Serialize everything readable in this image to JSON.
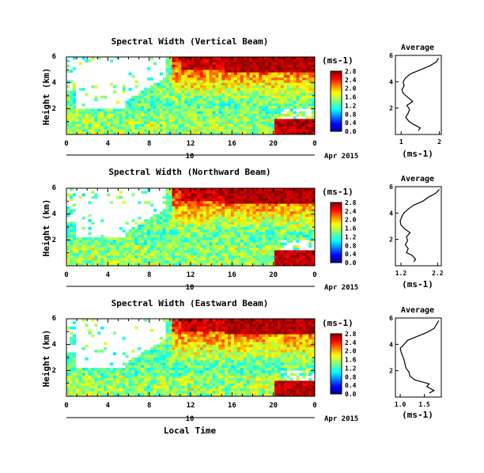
{
  "figure": {
    "xlabel": "Local Time",
    "date_label": "Apr 2015",
    "day_label": "10"
  },
  "chart_data": [
    {
      "type": "heatmap",
      "title": "Spectral Width (Vertical Beam)",
      "ylabel": "Height (km)",
      "xlim": [
        0,
        24
      ],
      "ylim": [
        0,
        6
      ],
      "x_ticks": [
        "0",
        "4",
        "8",
        "12",
        "16",
        "20",
        "0"
      ],
      "y_ticks": [
        "2",
        "4",
        "6"
      ],
      "colorbar": {
        "label": "(ms-1)",
        "ticks": [
          "0.0",
          "0.4",
          "0.8",
          "1.2",
          "1.6",
          "2.0",
          "2.4",
          "2.8"
        ],
        "range": [
          0,
          2.8
        ]
      },
      "average_profile": {
        "title": "Average",
        "xlabel": "(ms-1)",
        "ylabel": "",
        "x_ticks": [
          "1",
          "2"
        ],
        "xlim": [
          0.85,
          2.05
        ],
        "y_ticks": [
          "2",
          "4",
          "6"
        ],
        "ylim": [
          0,
          6
        ],
        "height": [
          0.3,
          0.5,
          0.8,
          1.0,
          1.3,
          1.6,
          1.9,
          2.2,
          2.5,
          2.8,
          3.1,
          3.4,
          3.7,
          4.0,
          4.3,
          4.6,
          4.9,
          5.2,
          5.5,
          5.8
        ],
        "value": [
          1.45,
          1.5,
          1.3,
          1.2,
          1.12,
          1.18,
          1.22,
          1.15,
          1.3,
          1.18,
          1.06,
          1.02,
          1.08,
          1.05,
          1.12,
          1.25,
          1.5,
          1.75,
          1.92,
          1.98
        ]
      }
    },
    {
      "type": "heatmap",
      "title": "Spectral Width (Northward Beam)",
      "ylabel": "Height (km)",
      "xlim": [
        0,
        24
      ],
      "ylim": [
        0,
        6
      ],
      "x_ticks": [
        "0",
        "4",
        "8",
        "12",
        "16",
        "20",
        "0"
      ],
      "y_ticks": [
        "2",
        "4",
        "6"
      ],
      "colorbar": {
        "label": "(ms-1)",
        "ticks": [
          "0.0",
          "0.4",
          "0.8",
          "1.2",
          "1.6",
          "2.0",
          "2.4",
          "2.8"
        ],
        "range": [
          0,
          2.8
        ]
      },
      "average_profile": {
        "title": "Average",
        "xlabel": "(ms-1)",
        "ylabel": "",
        "x_ticks": [
          "1.2",
          "2.2"
        ],
        "xlim": [
          1.05,
          2.3
        ],
        "y_ticks": [
          "2",
          "4",
          "6"
        ],
        "ylim": [
          0,
          6
        ],
        "height": [
          0.3,
          0.5,
          0.8,
          1.0,
          1.3,
          1.6,
          1.9,
          2.2,
          2.5,
          2.8,
          3.1,
          3.4,
          3.7,
          4.0,
          4.3,
          4.6,
          4.9,
          5.2,
          5.5,
          5.8
        ],
        "value": [
          1.55,
          1.6,
          1.5,
          1.35,
          1.4,
          1.32,
          1.38,
          1.35,
          1.45,
          1.3,
          1.2,
          1.18,
          1.22,
          1.28,
          1.4,
          1.55,
          1.8,
          1.95,
          2.15,
          2.25
        ]
      }
    },
    {
      "type": "heatmap",
      "title": "Spectral Width (Eastward Beam)",
      "ylabel": "Height (km)",
      "xlim": [
        0,
        24
      ],
      "ylim": [
        0,
        6
      ],
      "x_ticks": [
        "0",
        "4",
        "8",
        "12",
        "16",
        "20",
        "0"
      ],
      "y_ticks": [
        "2",
        "4",
        "6"
      ],
      "colorbar": {
        "label": "(ms-1)",
        "ticks": [
          "0.0",
          "0.4",
          "0.8",
          "1.2",
          "1.6",
          "2.0",
          "2.4",
          "2.8"
        ],
        "range": [
          0,
          2.8
        ]
      },
      "average_profile": {
        "title": "Average",
        "xlabel": "(ms-1)",
        "ylabel": "",
        "x_ticks": [
          "1.0",
          "1.5"
        ],
        "xlim": [
          0.9,
          1.85
        ],
        "y_ticks": [
          "2",
          "4",
          "6"
        ],
        "ylim": [
          0,
          6
        ],
        "height": [
          0.3,
          0.5,
          0.8,
          1.0,
          1.3,
          1.6,
          1.9,
          2.2,
          2.5,
          2.8,
          3.1,
          3.4,
          3.7,
          4.0,
          4.3,
          4.6,
          4.9,
          5.2,
          5.5,
          5.8
        ],
        "value": [
          1.6,
          1.7,
          1.55,
          1.6,
          1.3,
          1.2,
          1.18,
          1.12,
          1.1,
          1.08,
          1.05,
          1.02,
          1.0,
          1.08,
          1.15,
          1.35,
          1.55,
          1.7,
          1.75,
          1.8
        ]
      }
    }
  ]
}
